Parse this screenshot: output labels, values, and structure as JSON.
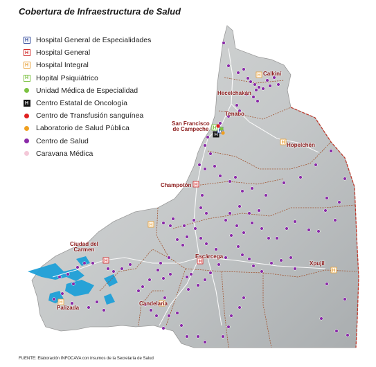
{
  "title": "Cobertura de Infraestructura de Salud",
  "legend": [
    {
      "label": "Hospital General de Especialidades",
      "icon": "hospital-especialidades-icon",
      "shape": "square",
      "glyph": "H",
      "fill": "#ffffff",
      "color": "#1f3a93"
    },
    {
      "label": "Hospital General",
      "icon": "hospital-general-icon",
      "shape": "square",
      "glyph": "H",
      "fill": "#ffffff",
      "color": "#d12b2b"
    },
    {
      "label": "Hospital Integral",
      "icon": "hospital-integral-icon",
      "shape": "square",
      "glyph": "H",
      "fill": "#ffffff",
      "color": "#e8a23a"
    },
    {
      "label": "Hopital Psiquiátrico",
      "icon": "hospital-psiquiatrico-icon",
      "shape": "square",
      "glyph": "H",
      "fill": "#ffffff",
      "color": "#7cc242"
    },
    {
      "label": "Unidad Médica de Especialidad",
      "icon": "unidad-medica-icon",
      "shape": "dot",
      "color": "#7cc242"
    },
    {
      "label": "Centro Estatal de Oncología",
      "icon": "centro-oncologia-icon",
      "shape": "square",
      "glyph": "H",
      "fill": "#111111",
      "color": "#ffffff"
    },
    {
      "label": "Centro de Transfusión sanguínea",
      "icon": "transfusion-icon",
      "shape": "dot",
      "color": "#e02020"
    },
    {
      "label": "Laboratorio de Salud Pública",
      "icon": "laboratorio-icon",
      "shape": "dot",
      "color": "#f0a020"
    },
    {
      "label": "Centro de Salud",
      "icon": "centro-salud-icon",
      "shape": "dot",
      "color": "#8a2aa8"
    },
    {
      "label": "Caravana Médica",
      "icon": "caravana-icon",
      "shape": "dot",
      "color": "#f4c8d8"
    }
  ],
  "places": {
    "calkini": "Calkiní",
    "hecelchakan": "Hecelchakán",
    "tenabo": "Tenabo",
    "campeche": "San Francisco\nde Campeche",
    "hopelchen": "Hopelchén",
    "champoton": "Champotón",
    "carmen": "Ciudad del\nCarmen",
    "escarcega": "Escárcega",
    "xpujil": "Xpujil",
    "palizada": "Palizada",
    "candelaria": "Candelaria"
  },
  "source": "FUENTE: Elaboración INFOCAVA con insumos de la Secretaría de Salud",
  "colors": {
    "state_fill": "#c9cccd",
    "water": "#1fa0d8",
    "border_red": "#c0392b",
    "municipal_border": "#a0522d",
    "road": "#ffffff"
  }
}
